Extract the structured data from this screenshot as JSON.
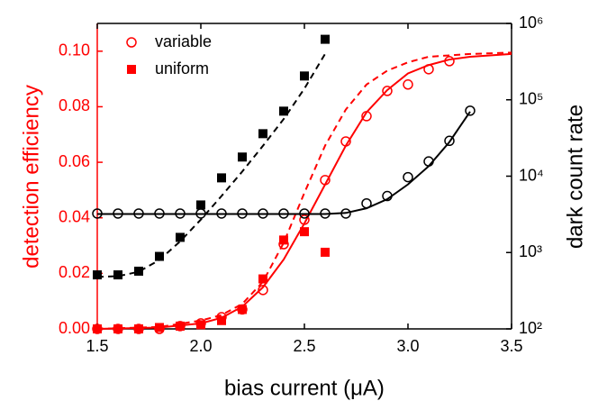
{
  "chart_data": {
    "type": "scatter-line",
    "xlabel": "bias current (μA)",
    "ylabel": "detection efficiency",
    "y2label": "dark count rate",
    "xlim": [
      1.5,
      3.5
    ],
    "xticks": [
      {
        "value": 1.5,
        "label": "1.5"
      },
      {
        "value": 2.0,
        "label": "2.0"
      },
      {
        "value": 2.5,
        "label": "2.5"
      },
      {
        "value": 3.0,
        "label": "3.0"
      },
      {
        "value": 3.5,
        "label": "3.5"
      }
    ],
    "ylim": [
      0,
      0.11
    ],
    "yticks": [
      {
        "value": 0,
        "label": "0.00"
      },
      {
        "value": 0.02,
        "label": "0.02"
      },
      {
        "value": 0.04,
        "label": "0.04"
      },
      {
        "value": 0.06,
        "label": "0.06"
      },
      {
        "value": 0.08,
        "label": "0.08"
      },
      {
        "value": 0.1,
        "label": "0.10"
      }
    ],
    "y2lim": [
      100,
      1000000
    ],
    "y2log": true,
    "y2ticks": [
      {
        "value": 100,
        "label": "10²"
      },
      {
        "value": 1000,
        "label": "10³"
      },
      {
        "value": 10000,
        "label": "10⁴"
      },
      {
        "value": 100000,
        "label": "10⁵"
      },
      {
        "value": 1000000,
        "label": "10⁶"
      }
    ],
    "ylabel_color": "#ff0000",
    "legend": "upper left",
    "series": [
      {
        "name": "variable",
        "color": "#ff0000",
        "style": "open-circle",
        "axis": "y",
        "x": [
          1.5,
          1.6,
          1.7,
          1.8,
          1.9,
          2.0,
          2.1,
          2.2,
          2.3,
          2.4,
          2.5,
          2.6,
          2.7,
          2.8,
          2.9,
          3.0,
          3.1,
          3.2
        ],
        "values": [
          0,
          0,
          0,
          0,
          0.001,
          0.002,
          0.0042,
          0.007,
          0.014,
          0.0305,
          0.0393,
          0.0536,
          0.0675,
          0.0766,
          0.0857,
          0.088,
          0.0935,
          0.0964
        ]
      },
      {
        "name": "uniform",
        "color": "#ff0000",
        "style": "square",
        "axis": "y",
        "x": [
          1.5,
          1.6,
          1.7,
          1.8,
          1.9,
          2.0,
          2.1,
          2.2,
          2.3,
          2.4,
          2.5,
          2.6
        ],
        "values": [
          0,
          0,
          0,
          0.0005,
          0.001,
          0.0015,
          0.003,
          0.007,
          0.018,
          0.032,
          0.035,
          0.0276
        ]
      },
      {
        "color": "#ff0000",
        "style": "solid",
        "axis": "y",
        "x": [
          1.5,
          1.8,
          2.0,
          2.1,
          2.2,
          2.3,
          2.4,
          2.5,
          2.6,
          2.7,
          2.8,
          2.9,
          3.0,
          3.1,
          3.2,
          3.3,
          3.5
        ],
        "values": [
          0,
          0.0005,
          0.002,
          0.004,
          0.008,
          0.015,
          0.025,
          0.038,
          0.052,
          0.066,
          0.078,
          0.086,
          0.092,
          0.095,
          0.097,
          0.098,
          0.099
        ]
      },
      {
        "color": "#ff0000",
        "style": "dashed",
        "axis": "y",
        "x": [
          1.5,
          1.8,
          2.0,
          2.1,
          2.2,
          2.3,
          2.4,
          2.5,
          2.6,
          2.7,
          2.8,
          2.9,
          3.0,
          3.1,
          3.3,
          3.5
        ],
        "values": [
          0,
          0.0007,
          0.003,
          0.005,
          0.009,
          0.017,
          0.031,
          0.049,
          0.066,
          0.079,
          0.088,
          0.093,
          0.096,
          0.098,
          0.099,
          0.0995
        ]
      },
      {
        "color": "#000000",
        "style": "open-circle",
        "axis": "y2",
        "x": [
          1.5,
          1.6,
          1.7,
          1.8,
          1.9,
          2.0,
          2.1,
          2.2,
          2.3,
          2.4,
          2.5,
          2.6,
          2.7,
          2.8,
          2.9,
          3.0,
          3.1,
          3.2,
          3.3
        ],
        "values": [
          3240,
          3240,
          3240,
          3240,
          3240,
          3240,
          3240,
          3240,
          3240,
          3240,
          3240,
          3240,
          3240,
          4400,
          5500,
          9700,
          15600,
          29000,
          72000
        ]
      },
      {
        "color": "#000000",
        "style": "square",
        "axis": "y2",
        "x": [
          1.5,
          1.6,
          1.7,
          1.8,
          1.9,
          2.0,
          2.1,
          2.2,
          2.3,
          2.4,
          2.5,
          2.6
        ],
        "values": [
          510,
          510,
          570,
          890,
          1580,
          4200,
          9500,
          17800,
          36000,
          71000,
          205000,
          620000
        ]
      },
      {
        "color": "#000000",
        "style": "solid",
        "axis": "y2",
        "x": [
          1.5,
          2.6,
          2.7,
          2.8,
          2.9,
          3.0,
          3.1,
          3.2,
          3.3
        ],
        "values": [
          3200,
          3200,
          3300,
          3800,
          5000,
          7800,
          13500,
          28000,
          70000
        ]
      },
      {
        "color": "#000000",
        "style": "dashed",
        "axis": "y2",
        "x": [
          1.5,
          1.6,
          1.7,
          1.8,
          1.9,
          2.0,
          2.1,
          2.2,
          2.3,
          2.4,
          2.5,
          2.6
        ],
        "values": [
          480,
          490,
          560,
          800,
          1400,
          2700,
          5500,
          11500,
          25000,
          56000,
          140000,
          400000
        ]
      }
    ]
  }
}
